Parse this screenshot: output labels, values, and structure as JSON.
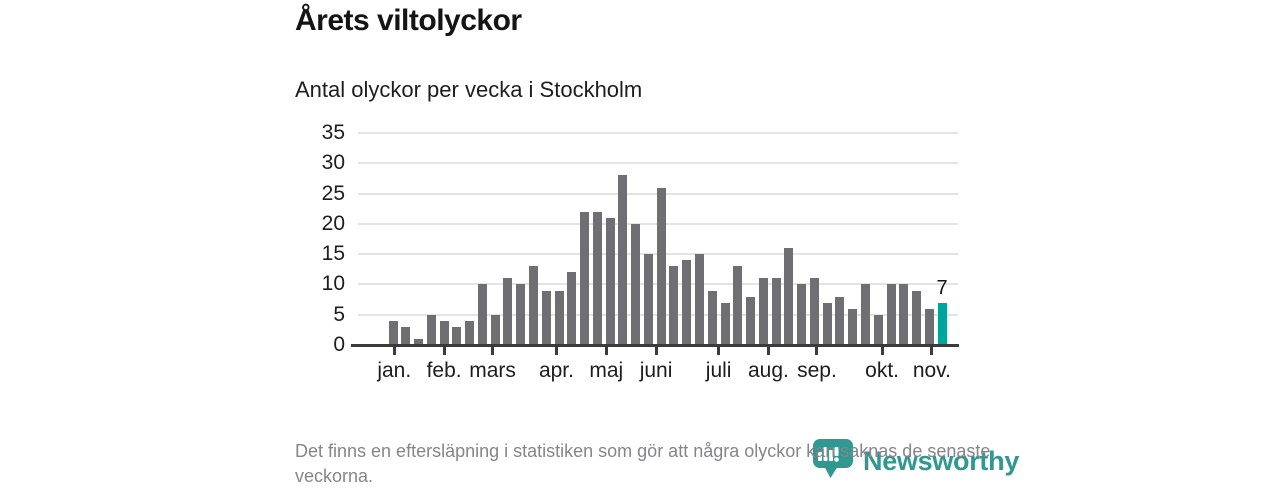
{
  "header": {
    "title": "Årets viltolyckor",
    "subtitle": "Antal olyckor per vecka i Stockholm"
  },
  "chart_data": {
    "type": "bar",
    "title": "Årets viltolyckor",
    "subtitle": "Antal olyckor per vecka i Stockholm",
    "xlabel": "",
    "ylabel": "",
    "x_description": "veckor (weeks) januari till november, 44 staplar",
    "values": [
      4,
      3,
      1,
      5,
      4,
      3,
      4,
      10,
      5,
      11,
      10,
      13,
      9,
      9,
      12,
      22,
      22,
      21,
      28,
      20,
      15,
      26,
      13,
      14,
      15,
      9,
      7,
      13,
      8,
      11,
      11,
      16,
      10,
      11,
      7,
      8,
      6,
      10,
      5,
      10,
      10,
      9,
      6,
      7
    ],
    "ylim": [
      0,
      35
    ],
    "y_ticks": [
      0,
      5,
      10,
      15,
      20,
      25,
      30,
      35
    ],
    "grid": true,
    "legend_position": "none",
    "month_ticks": [
      {
        "label": "jan.",
        "week": 1.1
      },
      {
        "label": "feb.",
        "week": 5.0
      },
      {
        "label": "mars",
        "week": 8.8
      },
      {
        "label": "apr.",
        "week": 13.8
      },
      {
        "label": "maj",
        "week": 17.7
      },
      {
        "label": "juni",
        "week": 21.6
      },
      {
        "label": "juli",
        "week": 26.5
      },
      {
        "label": "aug.",
        "week": 30.4
      },
      {
        "label": "sep.",
        "week": 34.2
      },
      {
        "label": "okt.",
        "week": 39.3
      },
      {
        "label": "nov.",
        "week": 43.2
      }
    ],
    "highlight": {
      "index": 43,
      "value": 7,
      "label": "7"
    },
    "colors": {
      "bar": "#6e6e73",
      "highlight": "#00a49c",
      "grid": "#e3e3e3",
      "axis": "#3b3b3b",
      "text": "#1d1d1d"
    }
  },
  "footer": {
    "note": "Det finns en eftersläpning i statistiken som gör att några olyckor kan saknas de senaste veckorna.",
    "brand": "Newsworthy",
    "brand_color": "#2f9890"
  }
}
